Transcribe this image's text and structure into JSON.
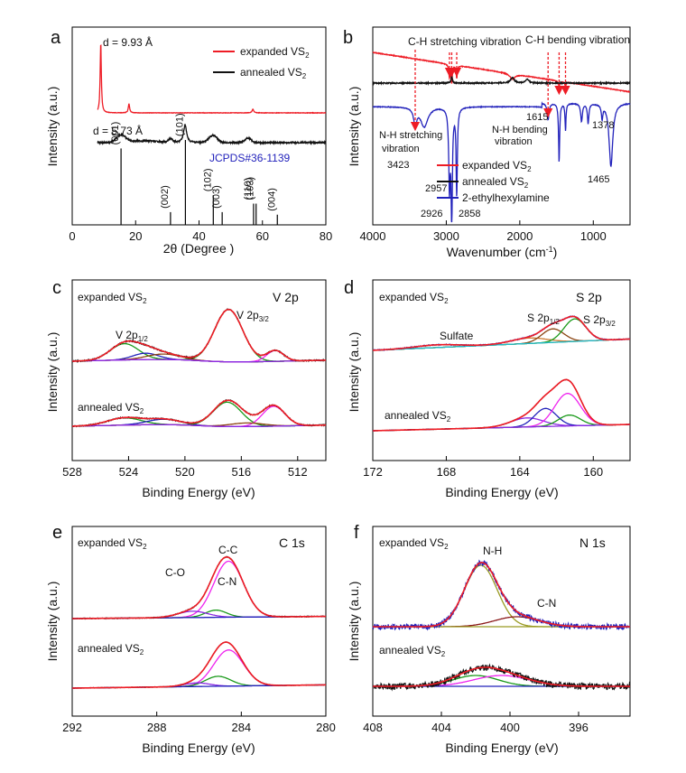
{
  "figure": "Six-panel characterization figure: XRD, FTIR and XPS spectra",
  "panels": {
    "a": {
      "letter": "a",
      "annotations": [
        "d = 9.93 Å",
        "d = 5.73 Å"
      ],
      "jcpds": "JCPDS#36-1139"
    },
    "b": {
      "letter": "b"
    },
    "c": {
      "letter": "c"
    },
    "d": {
      "letter": "d"
    },
    "e": {
      "letter": "e"
    },
    "f": {
      "letter": "f"
    }
  },
  "colors": {
    "red": "#ee1c25",
    "black": "#111111",
    "blue": "#2222bb",
    "green": "#1a9a1a",
    "magenta": "#ee22ee",
    "violet": "#8a2be2",
    "purple_base": "#7b1fa2",
    "cyan": "#22bbcc",
    "olive": "#999a22",
    "brown": "#8b4513",
    "orange": "#cc7a33",
    "darkred": "#8b1a1a"
  },
  "chart_data": [
    {
      "panel": "a",
      "type": "line",
      "title": "",
      "xlabel": "2θ (Degree )",
      "ylabel": "Intensity (a.u.)",
      "xlim": [
        0,
        80
      ],
      "xticks": [
        0,
        20,
        40,
        60,
        80
      ],
      "legend": [
        {
          "name": "expanded VS2",
          "label": "expanded VS",
          "sub": "2",
          "color": "#ee1c25"
        },
        {
          "name": "annealed VS2",
          "label": "annealed VS",
          "sub": "2",
          "color": "#111111"
        }
      ],
      "series": [
        {
          "name": "expanded VS2",
          "color": "#ee1c25",
          "peaks": [
            [
              9.0,
              9.93
            ],
            [
              17.9,
              1.2
            ],
            [
              57.0,
              0.4
            ]
          ],
          "baseline": 1.0
        },
        {
          "name": "annealed VS2",
          "color": "#111111",
          "peaks": [
            [
              15.4,
              5.73
            ],
            [
              35.7,
              2.0
            ],
            [
              44.4,
              0.9
            ],
            [
              55.5,
              0.5
            ]
          ],
          "baseline": 0.5
        }
      ],
      "reference_lines": {
        "label": "JCPDS#36-1139",
        "ticks": [
          {
            "hkl": "(001)",
            "x": 15.4,
            "h": 0.9
          },
          {
            "hkl": "(002)",
            "x": 31.0,
            "h": 0.15
          },
          {
            "hkl": "(101)",
            "x": 35.7,
            "h": 1.0
          },
          {
            "hkl": "(102)",
            "x": 44.5,
            "h": 0.35
          },
          {
            "hkl": "(003)",
            "x": 47.3,
            "h": 0.15
          },
          {
            "hkl": "(110)",
            "x": 57.2,
            "h": 0.25
          },
          {
            "hkl": "(103)",
            "x": 58.0,
            "h": 0.25
          },
          {
            "hkl": "(004)",
            "x": 64.7,
            "h": 0.12
          }
        ]
      }
    },
    {
      "panel": "b",
      "type": "line",
      "xlabel": "Wavenumber (cm-1)",
      "ylabel": "Intensity (a.u.)",
      "xlim": [
        4000,
        500
      ],
      "xticks": [
        4000,
        3000,
        2000,
        1000
      ],
      "legend": [
        {
          "name": "expanded VS2",
          "label": "expanded VS",
          "sub": "2",
          "color": "#ee1c25"
        },
        {
          "name": "annealed VS2",
          "label": "annealed VS",
          "sub": "2",
          "color": "#111111"
        },
        {
          "name": "2-ethylhexylamine",
          "label": "2-ethylhexylamine",
          "sub": "",
          "color": "#2222bb"
        }
      ],
      "annotations": [
        {
          "text": "C-H stretching vibration"
        },
        {
          "text": "C-H bending vibration"
        },
        {
          "text": "N-H stretching"
        },
        {
          "text": "vibration"
        },
        {
          "text": "3423"
        },
        {
          "text": "N-H bending"
        },
        {
          "text": "vibration"
        },
        {
          "text": "2957"
        },
        {
          "text": "2926"
        },
        {
          "text": "2858"
        },
        {
          "text": "1615"
        },
        {
          "text": "1465"
        },
        {
          "text": "1378"
        }
      ],
      "marked_wavenumbers": [
        3423,
        2957,
        2926,
        2858,
        1615,
        1465,
        1378
      ]
    },
    {
      "panel": "c",
      "type": "line",
      "title": "V 2p",
      "xlabel": "Binding Energy (eV)",
      "ylabel": "Intensity (a.u.)",
      "xlim": [
        528,
        510
      ],
      "xticks": [
        528,
        524,
        520,
        516,
        512
      ],
      "labels": [
        {
          "text": "expanded VS",
          "sub": "2"
        },
        {
          "text": "annealed VS",
          "sub": "2"
        },
        {
          "text": "V 2p",
          "sub": "1/2"
        },
        {
          "text": "V 2p",
          "sub": "3/2"
        }
      ],
      "peak_positions_eV": {
        "V 2p1/2": 524.3,
        "V 2p3/2": 516.9,
        "satellite": 513.6
      }
    },
    {
      "panel": "d",
      "type": "line",
      "title": "S 2p",
      "xlabel": "Binding Energy (eV)",
      "ylabel": "Intensity (a.u.)",
      "xlim": [
        172,
        158
      ],
      "xticks": [
        172,
        168,
        164,
        160
      ],
      "labels": [
        {
          "text": "expanded VS",
          "sub": "2"
        },
        {
          "text": "annealed VS",
          "sub": "2"
        },
        {
          "text": "S 2p",
          "sub": "1/2"
        },
        {
          "text": "S 2p",
          "sub": "3/2"
        },
        {
          "text": "Sulfate",
          "sub": ""
        }
      ],
      "peak_positions_eV": {
        "S 2p1/2": 162.0,
        "S 2p3/2": 161.0,
        "Sulfate": 168.5
      }
    },
    {
      "panel": "e",
      "type": "line",
      "title": "C 1s",
      "xlabel": "Binding Energy (eV)",
      "ylabel": "Intensity (a.u.)",
      "xlim": [
        292,
        280
      ],
      "xticks": [
        292,
        288,
        284,
        280
      ],
      "labels": [
        {
          "text": "expanded VS",
          "sub": "2"
        },
        {
          "text": "annealed VS",
          "sub": "2"
        },
        {
          "text": "C-C",
          "sub": ""
        },
        {
          "text": "C-O",
          "sub": ""
        },
        {
          "text": "C-N",
          "sub": ""
        }
      ],
      "peak_positions_eV": {
        "C-C": 284.6,
        "C-O": 286.3,
        "C-N": 285.3
      }
    },
    {
      "panel": "f",
      "type": "line",
      "title": "N 1s",
      "xlabel": "Binding Energy (eV)",
      "ylabel": "Intensity (a.u.)",
      "xlim": [
        408,
        393
      ],
      "xticks": [
        408,
        404,
        400,
        396
      ],
      "labels": [
        {
          "text": "expanded VS",
          "sub": "2"
        },
        {
          "text": "annealed VS",
          "sub": "2"
        },
        {
          "text": "N-H",
          "sub": ""
        },
        {
          "text": "C-N",
          "sub": ""
        }
      ],
      "peak_positions_eV": {
        "N-H": 401.6,
        "C-N": 399.6
      }
    }
  ]
}
